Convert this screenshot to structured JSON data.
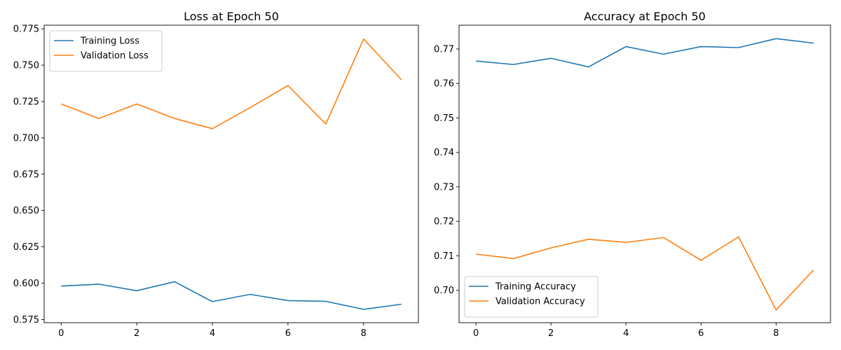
{
  "chart_data": [
    {
      "type": "line",
      "title": "Loss at Epoch 50",
      "xlabel": "",
      "ylabel": "",
      "x": [
        0,
        1,
        2,
        3,
        4,
        5,
        6,
        7,
        8,
        9
      ],
      "xticks": [
        0,
        2,
        4,
        6,
        8
      ],
      "yticks": [
        0.575,
        0.6,
        0.625,
        0.65,
        0.675,
        0.7,
        0.725,
        0.75,
        0.775
      ],
      "ytick_labels": [
        "0.575",
        "0.600",
        "0.625",
        "0.650",
        "0.675",
        "0.700",
        "0.725",
        "0.750",
        "0.775"
      ],
      "xlim": [
        -0.45,
        9.45
      ],
      "ylim": [
        0.5728,
        0.7775
      ],
      "legend": "top-left",
      "grid": false,
      "series": [
        {
          "name": "Training Loss",
          "color": "#1f77b4",
          "values": [
            0.598,
            0.5993,
            0.5948,
            0.601,
            0.5873,
            0.5923,
            0.588,
            0.5875,
            0.582,
            0.5855
          ]
        },
        {
          "name": "Validation Loss",
          "color": "#ff7f0e",
          "values": [
            0.7233,
            0.7133,
            0.7233,
            0.7133,
            0.7063,
            0.7208,
            0.736,
            0.7095,
            0.768,
            0.74
          ]
        }
      ]
    },
    {
      "type": "line",
      "title": "Accuracy at Epoch 50",
      "xlabel": "",
      "ylabel": "",
      "x": [
        0,
        1,
        2,
        3,
        4,
        5,
        6,
        7,
        8,
        9
      ],
      "xticks": [
        0,
        2,
        4,
        6,
        8
      ],
      "yticks": [
        0.7,
        0.71,
        0.72,
        0.73,
        0.74,
        0.75,
        0.76,
        0.77
      ],
      "ytick_labels": [
        "0.70",
        "0.71",
        "0.72",
        "0.73",
        "0.74",
        "0.75",
        "0.76",
        "0.77"
      ],
      "xlim": [
        -0.45,
        9.45
      ],
      "ylim": [
        0.6906,
        0.7769
      ],
      "legend": "bottom-left",
      "grid": false,
      "series": [
        {
          "name": "Training Accuracy",
          "color": "#1f77b4",
          "values": [
            0.7665,
            0.7655,
            0.7673,
            0.7648,
            0.7707,
            0.7685,
            0.7707,
            0.7704,
            0.773,
            0.7717
          ]
        },
        {
          "name": "Validation Accuracy",
          "color": "#ff7f0e",
          "values": [
            0.7105,
            0.7092,
            0.7123,
            0.7148,
            0.7139,
            0.7153,
            0.7087,
            0.7155,
            0.6943,
            0.7059
          ]
        }
      ]
    }
  ]
}
